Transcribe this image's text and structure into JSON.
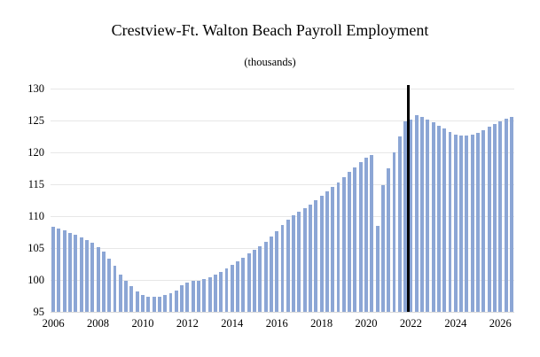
{
  "chart_data": {
    "type": "bar",
    "title": "Crestview-Ft. Walton Beach Payroll Employment",
    "subtitle": "(thousands)",
    "xlabel": "",
    "ylabel": "",
    "ylim": [
      95,
      130
    ],
    "yticks": [
      95,
      100,
      105,
      110,
      115,
      120,
      125,
      130
    ],
    "xticks": [
      2006,
      2008,
      2010,
      2012,
      2014,
      2016,
      2018,
      2020,
      2022,
      2024,
      2026
    ],
    "x_start_year": 2006,
    "frequency": "quarterly",
    "values": [
      108.4,
      108.1,
      107.8,
      107.4,
      107.1,
      106.7,
      106.3,
      105.8,
      105.2,
      104.4,
      103.4,
      102.2,
      100.9,
      99.9,
      99.0,
      98.2,
      97.6,
      97.3,
      97.3,
      97.4,
      97.6,
      97.9,
      98.4,
      99.1,
      99.6,
      99.8,
      99.9,
      100.1,
      100.4,
      100.8,
      101.3,
      101.8,
      102.3,
      102.9,
      103.5,
      104.1,
      104.7,
      105.3,
      106.0,
      106.8,
      107.7,
      108.6,
      109.4,
      110.1,
      110.7,
      111.2,
      111.8,
      112.5,
      113.2,
      113.9,
      114.6,
      115.3,
      116.1,
      116.9,
      117.7,
      118.5,
      119.2,
      119.6,
      108.5,
      114.8,
      117.5,
      120.0,
      122.5,
      124.8,
      125.2,
      125.8,
      125.5,
      125.1,
      124.7,
      124.2,
      123.7,
      123.2,
      122.8,
      122.6,
      122.6,
      122.8,
      123.1,
      123.5,
      124.0,
      124.5,
      124.9,
      125.3,
      125.6
    ],
    "vline_year": 2022,
    "bar_color": "#8ca6d5",
    "vline_color": "#000000",
    "grid_on": true,
    "legend": "none"
  }
}
